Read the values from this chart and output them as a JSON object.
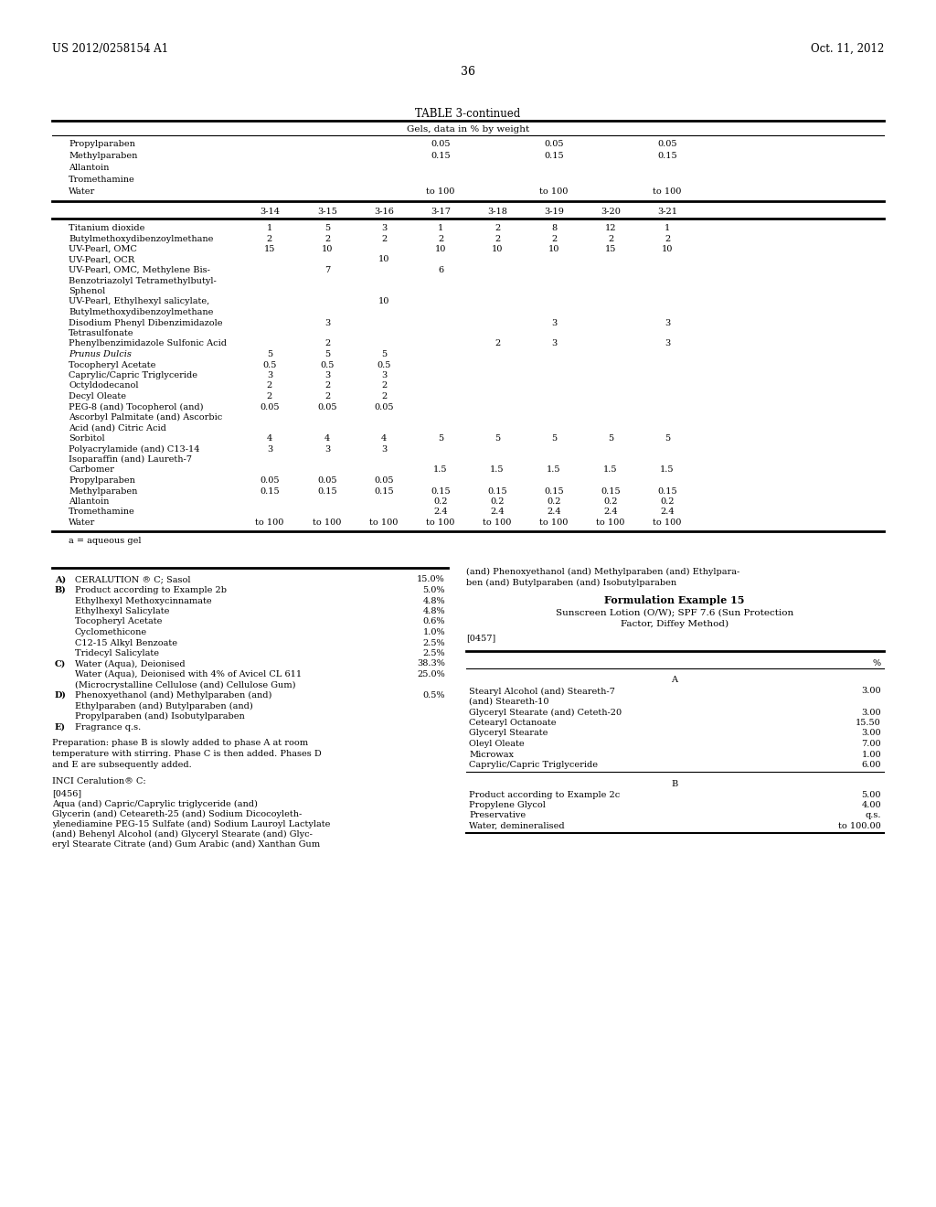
{
  "page_header_left": "US 2012/0258154 A1",
  "page_header_right": "Oct. 11, 2012",
  "page_number": "36",
  "bg_color": "#ffffff",
  "table_title": "TABLE 3-continued",
  "table_subtitle": "Gels, data in % by weight",
  "pre_header_rows": [
    {
      "label": "Propylparaben",
      "c3": "0.05",
      "c5": "0.05",
      "c7": "0.05"
    },
    {
      "label": "Methylparaben",
      "c3": "0.15",
      "c5": "0.15",
      "c7": "0.15"
    },
    {
      "label": "Allantoin",
      "c3": "",
      "c5": "",
      "c7": ""
    },
    {
      "label": "Tromethamine",
      "c3": "",
      "c5": "",
      "c7": ""
    },
    {
      "label": "Water",
      "c3": "to 100",
      "c5": "to 100",
      "c7": "to 100"
    }
  ],
  "col_headers": [
    "3-14",
    "3-15",
    "3-16",
    "3-17",
    "3-18",
    "3-19",
    "3-20",
    "3-21"
  ],
  "rows": [
    {
      "label": "Titanium dioxide",
      "vals": [
        "1",
        "5",
        "3",
        "1",
        "2",
        "8",
        "12",
        "1"
      ]
    },
    {
      "label": "Butylmethoxydibenzoylmethane",
      "vals": [
        "2",
        "2",
        "2",
        "2",
        "2",
        "2",
        "2",
        "2"
      ]
    },
    {
      "label": "UV-Pearl, OMC",
      "vals": [
        "15",
        "10",
        "",
        "10",
        "10",
        "10",
        "15",
        "10"
      ]
    },
    {
      "label": "UV-Pearl, OCR",
      "vals": [
        "",
        "",
        "10",
        "",
        "",
        "",
        "",
        ""
      ]
    },
    {
      "label": "UV-Pearl, OMC, Methylene Bis-",
      "vals": [
        "",
        "7",
        "",
        "6",
        "",
        "",
        "",
        ""
      ],
      "extra_lines": [
        "Benzotriazolyl Tetramethylbutyl-",
        "Sphenol"
      ]
    },
    {
      "label": "UV-Pearl, Ethylhexyl salicylate,",
      "vals": [
        "",
        "",
        "10",
        "",
        "",
        "",
        "",
        ""
      ],
      "extra_lines": [
        "Butylmethoxydibenzoylmethane"
      ]
    },
    {
      "label": "Disodium Phenyl Dibenzimidazole",
      "vals": [
        "",
        "3",
        "",
        "",
        "",
        "3",
        "",
        "3"
      ],
      "extra_lines": [
        "Tetrasulfonate"
      ]
    },
    {
      "label": "Phenylbenzimidazole Sulfonic Acid",
      "vals": [
        "",
        "2",
        "",
        "",
        "2",
        "3",
        "",
        "3"
      ]
    },
    {
      "label": "Prunus Dulcis",
      "vals": [
        "5",
        "5",
        "5",
        "",
        "",
        "",
        "",
        ""
      ],
      "italic": true
    },
    {
      "label": "Tocopheryl Acetate",
      "vals": [
        "0.5",
        "0.5",
        "0.5",
        "",
        "",
        "",
        "",
        ""
      ]
    },
    {
      "label": "Caprylic/Capric Triglyceride",
      "vals": [
        "3",
        "3",
        "3",
        "",
        "",
        "",
        "",
        ""
      ]
    },
    {
      "label": "Octyldodecanol",
      "vals": [
        "2",
        "2",
        "2",
        "",
        "",
        "",
        "",
        ""
      ]
    },
    {
      "label": "Decyl Oleate",
      "vals": [
        "2",
        "2",
        "2",
        "",
        "",
        "",
        "",
        ""
      ]
    },
    {
      "label": "PEG-8 (and) Tocopherol (and)",
      "vals": [
        "0.05",
        "0.05",
        "0.05",
        "",
        "",
        "",
        "",
        ""
      ]
    },
    {
      "label": "Ascorbyl Palmitate (and) Ascorbic",
      "vals": [
        "",
        "",
        "",
        "",
        "",
        "",
        "",
        ""
      ],
      "extra_lines": [
        "Acid (and) Citric Acid"
      ]
    },
    {
      "label": "Sorbitol",
      "vals": [
        "4",
        "4",
        "4",
        "5",
        "5",
        "5",
        "5",
        "5"
      ]
    },
    {
      "label": "Polyacrylamide (and) C13-14",
      "vals": [
        "3",
        "3",
        "3",
        "",
        "",
        "",
        "",
        ""
      ],
      "extra_lines": [
        "Isoparaffin (and) Laureth-7"
      ]
    },
    {
      "label": "Carbomer",
      "vals": [
        "",
        "",
        "",
        "1.5",
        "1.5",
        "1.5",
        "1.5",
        "1.5"
      ]
    },
    {
      "label": "Propylparaben",
      "vals": [
        "0.05",
        "0.05",
        "0.05",
        "",
        "",
        "",
        "",
        ""
      ]
    },
    {
      "label": "Methylparaben",
      "vals": [
        "0.15",
        "0.15",
        "0.15",
        "0.15",
        "0.15",
        "0.15",
        "0.15",
        "0.15"
      ]
    },
    {
      "label": "Allantoin",
      "vals": [
        "",
        "",
        "",
        "0.2",
        "0.2",
        "0.2",
        "0.2",
        "0.2"
      ]
    },
    {
      "label": "Tromethamine",
      "vals": [
        "",
        "",
        "",
        "2.4",
        "2.4",
        "2.4",
        "2.4",
        "2.4"
      ]
    },
    {
      "label": "Water",
      "vals": [
        "to 100",
        "to 100",
        "to 100",
        "to 100",
        "to 100",
        "to 100",
        "to 100",
        "to 100"
      ]
    }
  ],
  "footnote": "a = aqueous gel",
  "left_items": [
    {
      "label": "A)",
      "text": "CERALUTION ® C; Sasol",
      "val": "15.0%"
    },
    {
      "label": "B)",
      "text": "Product according to Example 2b",
      "val": "5.0%"
    },
    {
      "label": "",
      "text": "Ethylhexyl Methoxycinnamate",
      "val": "4.8%"
    },
    {
      "label": "",
      "text": "Ethylhexyl Salicylate",
      "val": "4.8%"
    },
    {
      "label": "",
      "text": "Tocopheryl Acetate",
      "val": "0.6%"
    },
    {
      "label": "",
      "text": "Cyclomethicone",
      "val": "1.0%"
    },
    {
      "label": "",
      "text": "C12-15 Alkyl Benzoate",
      "val": "2.5%"
    },
    {
      "label": "",
      "text": "Tridecyl Salicylate",
      "val": "2.5%"
    },
    {
      "label": "C)",
      "text": "Water (Aqua), Deionised",
      "val": "38.3%"
    },
    {
      "label": "",
      "text": "Water (Aqua), Deionised with 4% of Avicel CL 611",
      "val": "25.0%"
    },
    {
      "label": "",
      "text": "(Microcrystalline Cellulose (and) Cellulose Gum)",
      "val": ""
    },
    {
      "label": "D)",
      "text": "Phenoxyethanol (and) Methylparaben (and)",
      "val": "0.5%"
    },
    {
      "label": "",
      "text": "Ethylparaben (and) Butylparaben (and)",
      "val": ""
    },
    {
      "label": "",
      "text": "Propylparaben (and) Isobutylparaben",
      "val": ""
    },
    {
      "label": "E)",
      "text": "Fragrance q.s.",
      "val": ""
    }
  ],
  "preparation_text": "Preparation: phase B is slowly added to phase A at room\ntemperature with stirring. Phase C is then added. Phases D\nand E are subsequently added.",
  "inci_title": "INCI Ceralution® C:",
  "para_0456_label": "[0456]",
  "para_0456_text1": "Aqua (and) Capric/Caprylic triglyceride (and)",
  "para_0456_text2": "Glycerin (and) Ceteareth-25 (and) Sodium Dicocoyleth-",
  "para_0456_text3": "ylenediamine PEG-15 Sulfate (and) Sodium Lauroyl Lactylate",
  "para_0456_text4": "(and) Behenyl Alcohol (and) Glyceryl Stearate (and) Glyc-",
  "para_0456_text5": "eryl Stearate Citrate (and) Gum Arabic (and) Xanthan Gum",
  "para_0456_cont1": "(and) Phenoxyethanol (and) Methylparaben (and) Ethylpara-",
  "para_0456_cont2": "ben (and) Butylparaben (and) Isobutylparaben",
  "form_ex15_title": "Formulation Example 15",
  "form_ex15_sub1": "Sunscreen Lotion (O/W); SPF 7.6 (Sun Protection",
  "form_ex15_sub2": "Factor, Diffey Method)",
  "para_0457_label": "[0457]",
  "right_table_header": "%",
  "right_table_section_a": "A",
  "right_table_rows_a": [
    {
      "label": "Stearyl Alcohol (and) Steareth-7",
      "label2": "(and) Steareth-10",
      "val": "3.00"
    },
    {
      "label": "Glyceryl Stearate (and) Ceteth-20",
      "label2": "",
      "val": "3.00"
    },
    {
      "label": "Cetearyl Octanoate",
      "label2": "",
      "val": "15.50"
    },
    {
      "label": "Glyceryl Stearate",
      "label2": "",
      "val": "3.00"
    },
    {
      "label": "Oleyl Oleate",
      "label2": "",
      "val": "7.00"
    },
    {
      "label": "Microwax",
      "label2": "",
      "val": "1.00"
    },
    {
      "label": "Caprylic/Capric Triglyceride",
      "label2": "",
      "val": "6.00"
    }
  ],
  "right_table_section_b": "B",
  "right_table_rows_b": [
    {
      "label": "Product according to Example 2c",
      "label2": "",
      "val": "5.00"
    },
    {
      "label": "Propylene Glycol",
      "label2": "",
      "val": "4.00"
    },
    {
      "label": "Preservative",
      "label2": "",
      "val": "q.s."
    },
    {
      "label": "Water, demineralised",
      "label2": "",
      "val": "to 100.00"
    }
  ]
}
